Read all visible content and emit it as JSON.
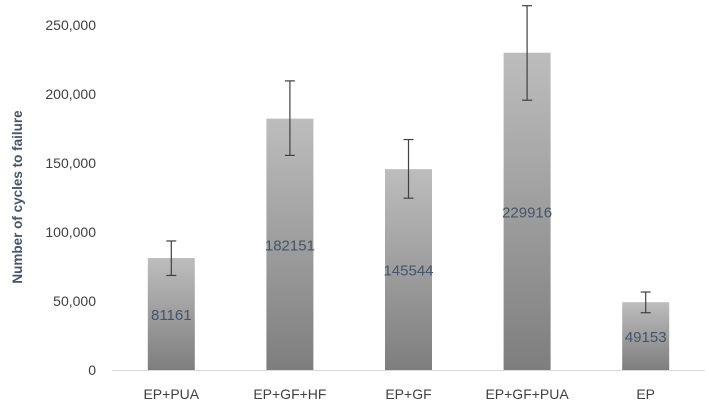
{
  "chart_data": {
    "type": "bar",
    "title": "",
    "xlabel": "",
    "ylabel": "Number of cycles to failure",
    "ylim": [
      0,
      250000
    ],
    "yticks": [
      0,
      50000,
      100000,
      150000,
      200000,
      250000
    ],
    "ytick_labels": [
      "0",
      "50,000",
      "100,000",
      "150,000",
      "200,000",
      "250,000"
    ],
    "grid": false,
    "legend": "none",
    "categories": [
      "EP+PUA",
      "EP+GF+HF",
      "EP+GF",
      "EP+GF+PUA",
      "EP"
    ],
    "values": [
      81161,
      182151,
      145544,
      229916,
      49153
    ],
    "data_labels": [
      "81161",
      "182151",
      "145544",
      "229916",
      "49153"
    ],
    "error_low": [
      68500,
      155500,
      124500,
      195500,
      41500
    ],
    "error_high": [
      93500,
      209500,
      167000,
      264000,
      56500
    ],
    "colors": {
      "bar_top": "#bdbdbd",
      "bar_bottom": "#7e7e7e",
      "axis": "#d9d9d9",
      "error_bar": "#404040",
      "data_label": "#44546A",
      "axis_title": "#44546A"
    }
  }
}
